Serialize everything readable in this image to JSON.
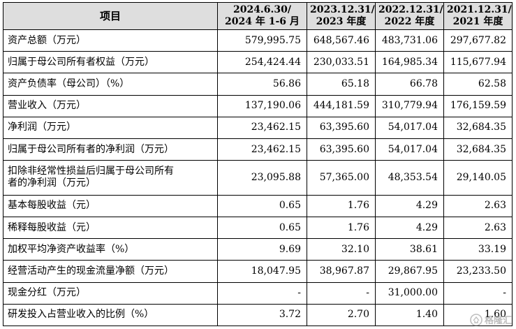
{
  "table": {
    "item_header": "项目",
    "columns": [
      {
        "line1": "2024.6.30/",
        "line2": "2024 年 1-6 月"
      },
      {
        "line1": "2023.12.31/",
        "line2": "2023 年度"
      },
      {
        "line1": "2022.12.31/",
        "line2": "2022 年度"
      },
      {
        "line1": "2021.12.31/",
        "line2": "2021 年度"
      }
    ],
    "rows": [
      {
        "label": "资产总额（万元）",
        "values": [
          "579,995.75",
          "648,567.46",
          "483,731.06",
          "297,677.82"
        ]
      },
      {
        "label": "归属于母公司所有者权益（万元）",
        "values": [
          "254,424.44",
          "230,033.51",
          "164,985.34",
          "115,677.94"
        ]
      },
      {
        "label": "资产负债率（母公司）（%）",
        "values": [
          "56.86",
          "65.18",
          "66.78",
          "62.58"
        ]
      },
      {
        "label": "营业收入（万元）",
        "values": [
          "137,190.06",
          "444,181.59",
          "310,779.94",
          "176,159.59"
        ]
      },
      {
        "label": "净利润（万元）",
        "values": [
          "23,462.15",
          "63,395.60",
          "54,017.04",
          "32,684.35"
        ]
      },
      {
        "label": "归属于母公司所有者的净利润（万元）",
        "values": [
          "23,462.15",
          "63,395.60",
          "54,017.04",
          "32,684.35"
        ]
      },
      {
        "label_lines": [
          "扣除非经常性损益后归属于母公司所有",
          "者的净利润（万元）"
        ],
        "values": [
          "23,095.88",
          "57,365.00",
          "48,353.54",
          "29,140.05"
        ]
      },
      {
        "label": "基本每股收益（元）",
        "values": [
          "0.65",
          "1.76",
          "4.29",
          "2.63"
        ]
      },
      {
        "label": "稀释每股收益（元）",
        "values": [
          "0.65",
          "1.76",
          "4.29",
          "2.63"
        ]
      },
      {
        "label": "加权平均净资产收益率（%）",
        "values": [
          "9.69",
          "32.10",
          "38.61",
          "33.19"
        ]
      },
      {
        "label": "经营活动产生的现金流量净额（万元）",
        "values": [
          "18,047.95",
          "38,967.87",
          "29,867.95",
          "23,233.50"
        ]
      },
      {
        "label": "现金分红（万元）",
        "values": [
          "-",
          "-",
          "31,000.00",
          "-"
        ]
      },
      {
        "label": "研发投入占营业收入的比例（%）",
        "values": [
          "3.72",
          "2.70",
          "1.40",
          "1.60"
        ]
      }
    ]
  },
  "watermark": {
    "text": "格隆汇",
    "icon": "gelonghui-logo-icon"
  }
}
